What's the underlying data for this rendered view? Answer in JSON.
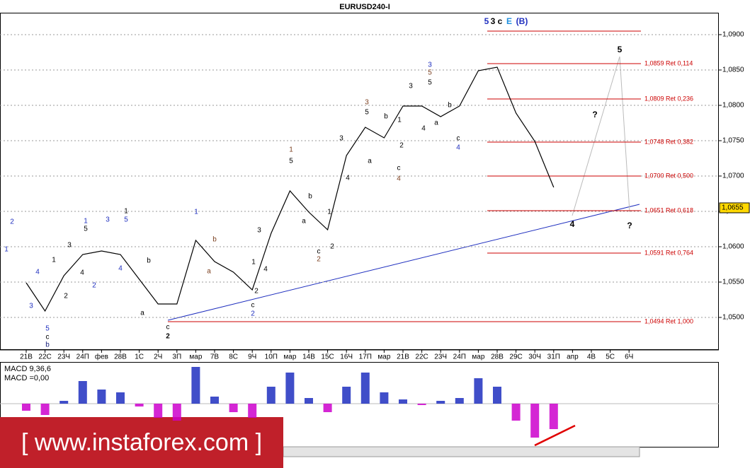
{
  "chart_data": {
    "type": "line",
    "title": "EURUSD240-I",
    "categories": [
      "21В",
      "22С",
      "23Ч",
      "24П",
      "фев",
      "28В",
      "1С",
      "2Ч",
      "3П",
      "мар",
      "7В",
      "8С",
      "9Ч",
      "10П",
      "мар",
      "14В",
      "15С",
      "16Ч",
      "17П",
      "мар",
      "21В",
      "22С",
      "23Ч",
      "24П",
      "мар",
      "28В",
      "29С",
      "30Ч",
      "31П",
      "апр",
      "4В",
      "5С",
      "6Ч"
    ],
    "values": [
      1.0549,
      1.0509,
      1.0559,
      1.0589,
      1.0594,
      1.0589,
      1.0554,
      1.0519,
      1.0519,
      1.0609,
      1.0579,
      1.0564,
      1.0539,
      1.0619,
      1.0679,
      1.0649,
      1.0624,
      1.0729,
      1.0769,
      1.0754,
      1.0799,
      1.0799,
      1.0784,
      1.0799,
      1.0849,
      1.0854,
      1.0789,
      1.0749,
      1.0684,
      null,
      null,
      null,
      null
    ],
    "color": "#000000",
    "ylim": [
      1.0454,
      1.0931
    ],
    "yticks": [
      {
        "value": 1.05,
        "label": "1,0500"
      },
      {
        "value": 1.055,
        "label": "1,0550"
      },
      {
        "value": 1.06,
        "label": "1,0600"
      },
      {
        "value": 1.065,
        "label": "1,0650"
      },
      {
        "value": 1.07,
        "label": "1,0700"
      },
      {
        "value": 1.075,
        "label": "1,0750"
      },
      {
        "value": 1.08,
        "label": "1,0800"
      },
      {
        "value": 1.085,
        "label": "1,0850"
      },
      {
        "value": 1.09,
        "label": "1,0900"
      }
    ],
    "grid": true,
    "fib_color": "#cc0000",
    "fib_levels": [
      {
        "value": 1.0905
      },
      {
        "value": 1.0859,
        "label": "1,0859 Ret 0,114"
      },
      {
        "value": 1.0809,
        "label": "1,0809 Ret 0,236"
      },
      {
        "value": 1.0748,
        "label": "1,0748 Ret 0,382"
      },
      {
        "value": 1.07,
        "label": "1,0700 Ret 0,500"
      },
      {
        "value": 1.0651,
        "label": "1,0651 Ret 0,618"
      },
      {
        "value": 1.0591,
        "label": "1,0591 Ret 0,764"
      },
      {
        "value": 1.0494,
        "label": "1,0494 Ret 1,000"
      }
    ],
    "current_price": {
      "value": 1.0655,
      "label": "1,0655"
    },
    "annotations": [
      {
        "text": "1",
        "color": "#1f2fbf"
      },
      {
        "text": "2",
        "color": "#1f2fbf"
      },
      {
        "text": "3",
        "color": "#1f2fbf"
      },
      {
        "text": "4",
        "color": "#1f2fbf"
      },
      {
        "text": "5",
        "color": "#1f2fbf"
      },
      {
        "text": "c",
        "color": "#000000"
      },
      {
        "text": "b",
        "color": "#1a237e"
      },
      {
        "text": "1",
        "color": "#000000"
      },
      {
        "text": "2",
        "color": "#000000"
      },
      {
        "text": "3",
        "color": "#000000"
      },
      {
        "text": "4",
        "color": "#000000"
      },
      {
        "text": "5",
        "color": "#000000"
      },
      {
        "text": "1",
        "color": "#1f2fbf"
      },
      {
        "text": "2",
        "color": "#1f2fbf"
      },
      {
        "text": "3",
        "color": "#1f2fbf"
      },
      {
        "text": "4",
        "color": "#1f2fbf"
      },
      {
        "text": "1",
        "color": "#000000"
      },
      {
        "text": "5",
        "color": "#1f2fbf"
      },
      {
        "text": "b",
        "color": "#000000"
      },
      {
        "text": "a",
        "color": "#000000"
      },
      {
        "text": "c",
        "color": "#000000"
      },
      {
        "text": "2",
        "color": "#000000"
      },
      {
        "text": "1",
        "color": "#1f2fbf"
      },
      {
        "text": "b",
        "color": "#7b3f1f"
      },
      {
        "text": "a",
        "color": "#7b3f1f"
      },
      {
        "text": "3",
        "color": "#000000"
      },
      {
        "text": "4",
        "color": "#000000"
      },
      {
        "text": "1",
        "color": "#000000"
      },
      {
        "text": "2",
        "color": "#000000"
      },
      {
        "text": "c",
        "color": "#000000"
      },
      {
        "text": "2",
        "color": "#1f2fbf"
      },
      {
        "text": "1",
        "color": "#7b3f1f"
      },
      {
        "text": "5",
        "color": "#000000"
      },
      {
        "text": "b",
        "color": "#000000"
      },
      {
        "text": "a",
        "color": "#000000"
      },
      {
        "text": "c",
        "color": "#000000"
      },
      {
        "text": "2",
        "color": "#7b3f1f"
      },
      {
        "text": "1",
        "color": "#000000"
      },
      {
        "text": "2",
        "color": "#000000"
      },
      {
        "text": "3",
        "color": "#000000"
      },
      {
        "text": "4",
        "color": "#000000"
      },
      {
        "text": "3",
        "color": "#7b3f1f"
      },
      {
        "text": "5",
        "color": "#000000"
      },
      {
        "text": "a",
        "color": "#000000"
      },
      {
        "text": "b",
        "color": "#000000"
      },
      {
        "text": "1",
        "color": "#000000"
      },
      {
        "text": "2",
        "color": "#000000"
      },
      {
        "text": "c",
        "color": "#000000"
      },
      {
        "text": "4",
        "color": "#7b3f1f"
      },
      {
        "text": "3",
        "color": "#000000"
      },
      {
        "text": "4",
        "color": "#000000"
      },
      {
        "text": "a",
        "color": "#000000"
      },
      {
        "text": "b",
        "color": "#000000"
      },
      {
        "text": "3",
        "color": "#1f2fbf"
      },
      {
        "text": "5",
        "color": "#7b3f1f"
      },
      {
        "text": "5",
        "color": "#000000"
      },
      {
        "text": "c",
        "color": "#000000"
      },
      {
        "text": "4",
        "color": "#1f2fbf"
      },
      {
        "text": "5",
        "color": "#1f2fbf"
      },
      {
        "text": "3 c",
        "color": "#000000"
      },
      {
        "text": "E",
        "color": "#1f8fdf"
      },
      {
        "text": "(B)",
        "color": "#1f2fbf"
      },
      {
        "text": "4",
        "color": "#000000"
      },
      {
        "text": "5",
        "color": "#000000"
      },
      {
        "text": "?",
        "color": "#000000"
      },
      {
        "text": "?",
        "color": "#000000"
      }
    ],
    "macd": {
      "label": "MACD 9,36,6",
      "value": 0,
      "value_label": "MACD =0,00",
      "positive_color": "#1f2fbf",
      "negative_color": "#cc00cc",
      "ylim": [
        -0.0028,
        0.0028
      ],
      "values": [
        -0.0005,
        -0.0008,
        0.0002,
        0.0016,
        0.001,
        0.0008,
        -0.0002,
        -0.001,
        -0.0012,
        0.0026,
        0.0005,
        -0.0006,
        -0.001,
        0.0012,
        0.0022,
        0.0004,
        -0.0006,
        0.0012,
        0.0022,
        0.0008,
        0.0003,
        -0.0001,
        0.0002,
        0.0004,
        0.0018,
        0.0012,
        -0.0012,
        -0.0024,
        -0.0018,
        null,
        null,
        null,
        null
      ]
    },
    "watermark": "[ www.instaforex.com ]"
  }
}
